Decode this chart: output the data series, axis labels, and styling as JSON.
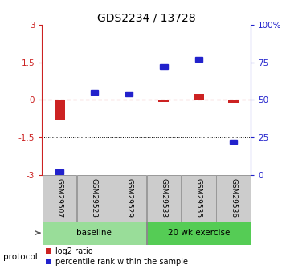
{
  "title": "GDS2234 / 13728",
  "samples": [
    "GSM29507",
    "GSM29523",
    "GSM29529",
    "GSM29533",
    "GSM29535",
    "GSM29536"
  ],
  "log2_ratio": [
    -0.82,
    0.0,
    -0.02,
    -0.08,
    0.22,
    -0.12
  ],
  "percentile_rank": [
    2.0,
    55.0,
    54.0,
    72.0,
    77.0,
    22.0
  ],
  "ylim": [
    -3,
    3
  ],
  "dotted_lines": [
    1.5,
    -1.5
  ],
  "bar_color": "#cc2222",
  "dot_color": "#2222cc",
  "dashed_line_color": "#cc2222",
  "groups": [
    {
      "label": "baseline",
      "indices": [
        0,
        1,
        2
      ],
      "color": "#99dd99"
    },
    {
      "label": "20 wk exercise",
      "indices": [
        3,
        4,
        5
      ],
      "color": "#55cc55"
    }
  ],
  "protocol_label": "protocol",
  "legend_red": "log2 ratio",
  "legend_blue": "percentile rank within the sample",
  "background_color": "#ffffff",
  "bar_width": 0.3,
  "right_yticks": [
    0,
    25,
    50,
    75,
    100
  ],
  "right_yticklabels": [
    "0",
    "25",
    "50",
    "75",
    "100%"
  ],
  "sample_box_color": "#cccccc",
  "sample_box_edge": "#999999"
}
